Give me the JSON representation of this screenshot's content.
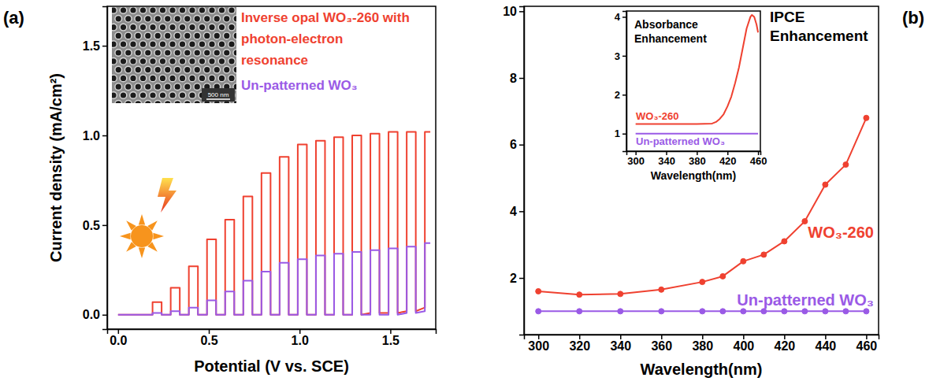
{
  "chart_data": [
    {
      "type": "line",
      "panel_label": "(a)",
      "x_label": "Potential (V vs. SCE)",
      "y_label": "Current density (mA/cm²)",
      "x": [
        0,
        0.19,
        0.19,
        0.24,
        0.24,
        0.29,
        0.29,
        0.34,
        0.34,
        0.39,
        0.39,
        0.44,
        0.44,
        0.49,
        0.49,
        0.54,
        0.54,
        0.59,
        0.59,
        0.64,
        0.64,
        0.69,
        0.69,
        0.74,
        0.74,
        0.79,
        0.79,
        0.84,
        0.84,
        0.89,
        0.89,
        0.94,
        0.94,
        0.99,
        0.99,
        1.04,
        1.04,
        1.09,
        1.09,
        1.14,
        1.14,
        1.19,
        1.19,
        1.24,
        1.24,
        1.29,
        1.29,
        1.34,
        1.34,
        1.39,
        1.39,
        1.44,
        1.44,
        1.49,
        1.49,
        1.54,
        1.54,
        1.59,
        1.59,
        1.64,
        1.64,
        1.69,
        1.69,
        1.72
      ],
      "series": [
        {
          "name": "Inverse opal WO₃-260 with photon-electron resonance",
          "color": "#ef4130",
          "values": [
            0,
            0,
            0.07,
            0.07,
            0,
            0,
            0.15,
            0.15,
            0,
            0,
            0.27,
            0.27,
            0,
            0,
            0.42,
            0.42,
            0,
            0,
            0.53,
            0.53,
            0,
            0,
            0.66,
            0.66,
            0,
            0,
            0.79,
            0.79,
            0,
            0,
            0.88,
            0.88,
            0,
            0,
            0.95,
            0.95,
            0,
            0,
            0.97,
            0.97,
            0,
            0,
            0.99,
            0.99,
            0,
            0,
            1.0,
            1.0,
            0,
            0.01,
            1.01,
            1.01,
            0.01,
            0.01,
            1.02,
            1.02,
            0.01,
            0.02,
            1.02,
            1.02,
            0.02,
            0.04,
            1.02,
            1.02
          ]
        },
        {
          "name": "Un-patterned WO₃",
          "color": "#9a5ae6",
          "values": [
            0,
            0,
            0.01,
            0.01,
            0,
            0,
            0.02,
            0.02,
            0,
            0,
            0.04,
            0.04,
            0,
            0,
            0.08,
            0.08,
            0,
            0,
            0.13,
            0.13,
            0,
            0,
            0.19,
            0.19,
            0,
            0,
            0.24,
            0.24,
            0,
            0,
            0.29,
            0.29,
            0,
            0,
            0.31,
            0.31,
            0,
            0,
            0.33,
            0.33,
            0,
            0,
            0.34,
            0.34,
            0,
            0,
            0.35,
            0.35,
            0,
            0,
            0.36,
            0.36,
            0,
            0,
            0.37,
            0.37,
            0,
            0.01,
            0.38,
            0.38,
            0.01,
            0.02,
            0.4,
            0.4
          ]
        }
      ],
      "xlim": [
        -0.06,
        1.75
      ],
      "xticks": [
        {
          "value": 0,
          "label": "0.0"
        },
        0.5,
        {
          "value": 1,
          "label": "1.0"
        },
        1.5
      ],
      "ylim": [
        -0.08,
        1.72
      ],
      "yticks": [
        {
          "value": 0,
          "label": "0.0"
        },
        0.5,
        {
          "value": 1,
          "label": "1.0"
        },
        1.5
      ],
      "grid": false,
      "legend": "upper right",
      "annotations": [
        "500 nm"
      ]
    },
    {
      "type": "line",
      "panel_label": "(b)",
      "title": "IPCE Enhancement",
      "x_label": "Wavelength(nm)",
      "x": [
        300,
        320,
        340,
        360,
        380,
        390,
        400,
        410,
        420,
        430,
        440,
        450,
        460
      ],
      "series": [
        {
          "name": "WO₃-260",
          "color": "#ef4130",
          "marker": "circle",
          "values": [
            1.6,
            1.5,
            1.52,
            1.65,
            1.88,
            2.05,
            2.5,
            2.7,
            3.1,
            3.7,
            4.8,
            5.4,
            6.8
          ]
        },
        {
          "name": "Un-patterned WO₃",
          "color": "#9a5ae6",
          "marker": "circle",
          "values": [
            1,
            1,
            1,
            1,
            1,
            1,
            1,
            1,
            1,
            1,
            1,
            1,
            1
          ]
        }
      ],
      "xlim": [
        293,
        466
      ],
      "xticks": [
        300,
        320,
        340,
        360,
        380,
        400,
        420,
        440,
        460
      ],
      "ylim": [
        0.3,
        10.15
      ],
      "yticks": [
        2,
        4,
        6,
        8,
        10
      ],
      "grid": false
    },
    {
      "type": "line",
      "title": "Absorbance Enhancement",
      "x_label": "Wavelength(nm)",
      "x": [
        300,
        320,
        340,
        360,
        380,
        400,
        405,
        410,
        415,
        420,
        425,
        430,
        435,
        440,
        445,
        450,
        452,
        455,
        458,
        460
      ],
      "series": [
        {
          "name": "WO₃-260",
          "color": "#ef4130",
          "values": [
            1.25,
            1.25,
            1.25,
            1.25,
            1.25,
            1.26,
            1.3,
            1.38,
            1.5,
            1.7,
            1.95,
            2.3,
            2.7,
            3.2,
            3.7,
            4.0,
            4.05,
            4.0,
            3.8,
            3.6
          ]
        },
        {
          "name": "Un-patterned WO₃",
          "color": "#9a5ae6",
          "values": [
            1,
            1,
            1,
            1,
            1,
            1,
            1,
            1,
            1,
            1,
            1,
            1,
            1,
            1,
            1,
            1,
            1,
            1,
            1,
            1
          ]
        }
      ],
      "xlim": [
        288,
        463
      ],
      "xticks": [
        300,
        340,
        380,
        420,
        460
      ],
      "ylim": [
        0.55,
        4.15
      ],
      "yticks": [
        1,
        2,
        3,
        4
      ],
      "grid": false
    }
  ]
}
